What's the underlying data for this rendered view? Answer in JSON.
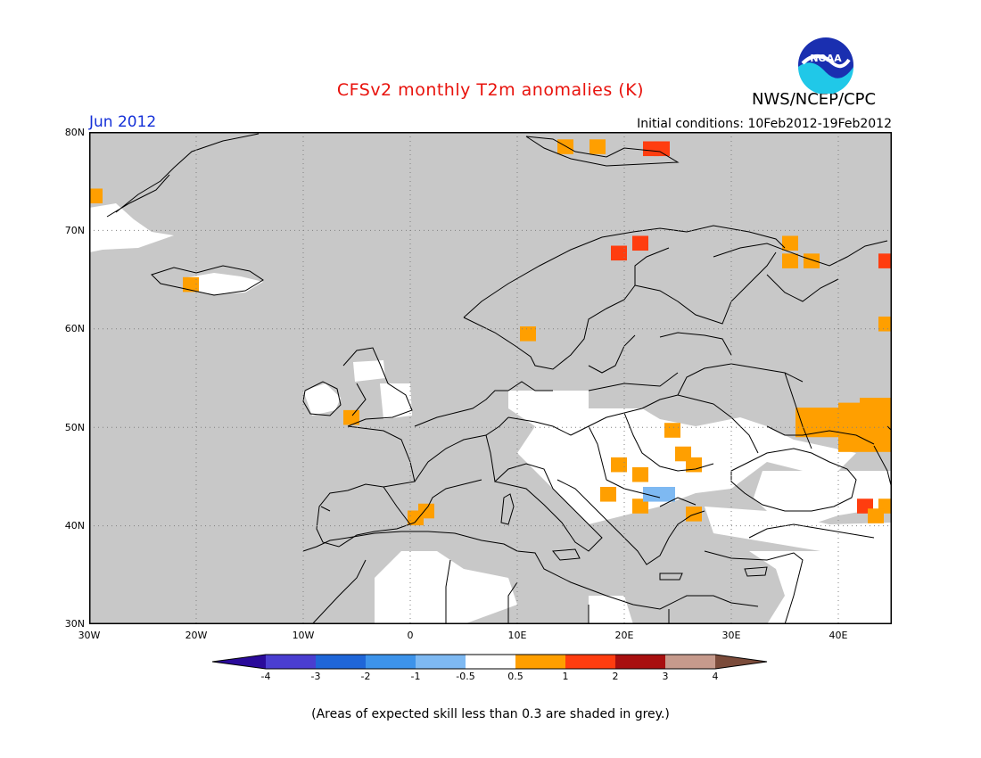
{
  "title": "CFSv2 monthly T2m anomalies (K)",
  "org": "NWS/NCEP/CPC",
  "logo_text": "NOAA",
  "month": "Jun 2012",
  "initial_conditions": "Initial conditions: 10Feb2012-19Feb2012",
  "lat_labels": [
    "80N",
    "70N",
    "60N",
    "50N",
    "40N",
    "30N"
  ],
  "lon_labels": [
    "30W",
    "20W",
    "10W",
    "0",
    "10E",
    "20E",
    "30E",
    "40E"
  ],
  "colorbar": {
    "labels": [
      "-4",
      "-3",
      "-2",
      "-1",
      "-0.5",
      "0.5",
      "1",
      "2",
      "3",
      "4"
    ],
    "colors": [
      "#2a0a9a",
      "#4a3ed0",
      "#1f66d8",
      "#3d93ea",
      "#7eb9f2",
      "#ffffff",
      "#ff9f00",
      "#ff3d0f",
      "#a80f0f",
      "#c69a8c",
      "#7b4b3a"
    ]
  },
  "footnote": "(Areas of expected skill less than 0.3 are shaded in grey.)",
  "map_colors": {
    "grey": "#c8c8c8",
    "white": "#ffffff"
  },
  "anomaly_cells": [
    {
      "lon": -29.5,
      "lat": 73.5,
      "c": "#ff9f00"
    },
    {
      "lon": -20.5,
      "lat": 64.5,
      "c": "#ff9f00"
    },
    {
      "lon": 14.5,
      "lat": 78.5,
      "c": "#ff9f00"
    },
    {
      "lon": 17.5,
      "lat": 78.5,
      "c": "#ff9f00"
    },
    {
      "lon": 22.5,
      "lat": 78.3,
      "c": "#ff3d0f"
    },
    {
      "lon": 23.5,
      "lat": 78.3,
      "c": "#ff3d0f"
    },
    {
      "lon": 19.5,
      "lat": 67.7,
      "c": "#ff3d0f"
    },
    {
      "lon": 21.5,
      "lat": 68.7,
      "c": "#ff3d0f"
    },
    {
      "lon": 35.5,
      "lat": 68.7,
      "c": "#ff9f00"
    },
    {
      "lon": 35.5,
      "lat": 66.9,
      "c": "#ff9f00"
    },
    {
      "lon": 37.5,
      "lat": 66.9,
      "c": "#ff9f00"
    },
    {
      "lon": 44.5,
      "lat": 66.9,
      "c": "#ff3d0f"
    },
    {
      "lon": 44.5,
      "lat": 60.5,
      "c": "#ff9f00"
    },
    {
      "lon": 11.0,
      "lat": 59.5,
      "c": "#ff9f00"
    },
    {
      "lon": -5.5,
      "lat": 51.0,
      "c": "#ff9f00"
    },
    {
      "lon": 1.5,
      "lat": 41.5,
      "c": "#ff9f00"
    },
    {
      "lon": 0.5,
      "lat": 40.8,
      "c": "#ff9f00"
    },
    {
      "lon": 24.5,
      "lat": 49.7,
      "c": "#ff9f00"
    },
    {
      "lon": 25.5,
      "lat": 47.3,
      "c": "#ff9f00"
    },
    {
      "lon": 26.5,
      "lat": 46.2,
      "c": "#ff9f00"
    },
    {
      "lon": 19.5,
      "lat": 46.2,
      "c": "#ff9f00"
    },
    {
      "lon": 21.5,
      "lat": 45.2,
      "c": "#ff9f00"
    },
    {
      "lon": 18.5,
      "lat": 43.2,
      "c": "#ff9f00"
    },
    {
      "lon": 21.5,
      "lat": 42.0,
      "c": "#ff9f00"
    },
    {
      "lon": 22.5,
      "lat": 43.2,
      "c": "#7eb9f2"
    },
    {
      "lon": 24.0,
      "lat": 43.2,
      "c": "#7eb9f2"
    },
    {
      "lon": 26.5,
      "lat": 41.2,
      "c": "#ff9f00"
    },
    {
      "lon": 42.5,
      "lat": 42.0,
      "c": "#ff3d0f"
    },
    {
      "lon": 44.5,
      "lat": 42.0,
      "c": "#ff9f00"
    },
    {
      "lon": 43.5,
      "lat": 41.0,
      "c": "#ff9f00"
    }
  ],
  "anomaly_blocks": [
    {
      "lon0": 36,
      "lon1": 45,
      "lat0": 49,
      "lat1": 52,
      "c": "#ff9f00"
    },
    {
      "lon0": 40,
      "lon1": 45,
      "lat0": 47.5,
      "lat1": 52.5,
      "c": "#ff9f00"
    },
    {
      "lon0": 42,
      "lon1": 45,
      "lat0": 52,
      "lat1": 53,
      "c": "#ff9f00"
    }
  ]
}
